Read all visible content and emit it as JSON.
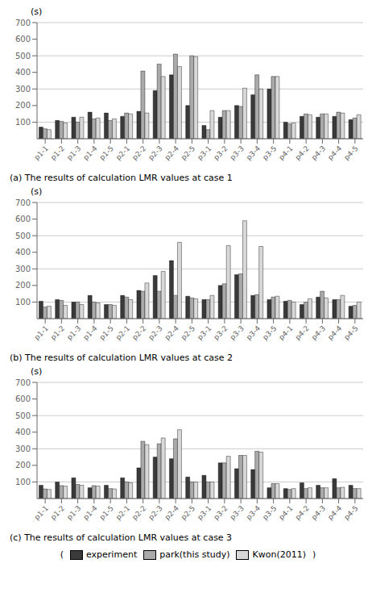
{
  "chart_data": [
    {
      "type": "bar",
      "title": "(a)  The results of calculation LMR values at case 1",
      "y_label": "(s)",
      "categories": [
        "p1-1",
        "p1-2",
        "p1-3",
        "p1-4",
        "p1-5",
        "p2-1",
        "p2-2",
        "p2-3",
        "p2-4",
        "p2-5",
        "p3-1",
        "p3-2",
        "p3-3",
        "p3-4",
        "p3-5",
        "p4-1",
        "p4-2",
        "p4-3",
        "p4-4",
        "p4-5"
      ],
      "series": [
        {
          "name": "experiment",
          "color": "#3a3a3a",
          "values": [
            70,
            110,
            130,
            160,
            155,
            135,
            165,
            290,
            385,
            200,
            80,
            130,
            200,
            265,
            300,
            100,
            135,
            130,
            135,
            115
          ]
        },
        {
          "name": "park(this study)",
          "color": "#aaaaaa",
          "values": [
            60,
            105,
            100,
            120,
            110,
            155,
            408,
            450,
            510,
            500,
            55,
            170,
            195,
            385,
            375,
            90,
            150,
            150,
            160,
            125
          ]
        },
        {
          "name": "Kwon(2011)",
          "color": "#d8d8d8",
          "values": [
            55,
            95,
            130,
            125,
            120,
            150,
            155,
            375,
            435,
            495,
            170,
            170,
            305,
            300,
            375,
            95,
            145,
            150,
            155,
            145
          ]
        }
      ],
      "ylim": [
        0,
        700
      ],
      "yticks": [
        100,
        200,
        300,
        400,
        500,
        600,
        700
      ],
      "grid": true
    },
    {
      "type": "bar",
      "title": "(b)  The results of calculation LMR values at case 2",
      "y_label": "(s)",
      "categories": [
        "p1-1",
        "p1-2",
        "p1-3",
        "p1-4",
        "p1-5",
        "p2-1",
        "p2-2",
        "p2-3",
        "p2-4",
        "p2-5",
        "p3-1",
        "p3-2",
        "p3-3",
        "p3-4",
        "p3-5",
        "p4-1",
        "p4-2",
        "p4-3",
        "p4-4",
        "p4-5"
      ],
      "series": [
        {
          "name": "experiment",
          "color": "#3a3a3a",
          "values": [
            105,
            115,
            100,
            140,
            85,
            140,
            170,
            260,
            350,
            135,
            115,
            200,
            265,
            140,
            115,
            105,
            85,
            130,
            115,
            75
          ]
        },
        {
          "name": "park(this study)",
          "color": "#aaaaaa",
          "values": [
            70,
            110,
            100,
            100,
            85,
            130,
            165,
            165,
            140,
            125,
            115,
            210,
            270,
            145,
            130,
            110,
            100,
            165,
            115,
            80
          ]
        },
        {
          "name": "Kwon(2011)",
          "color": "#d8d8d8",
          "values": [
            75,
            80,
            85,
            95,
            80,
            115,
            215,
            285,
            460,
            120,
            140,
            440,
            590,
            435,
            135,
            100,
            120,
            125,
            140,
            100
          ]
        }
      ],
      "ylim": [
        0,
        700
      ],
      "yticks": [
        100,
        200,
        300,
        400,
        500,
        600,
        700
      ],
      "grid": true
    },
    {
      "type": "bar",
      "title": "(c)  The results of calculation LMR values at case 3",
      "y_label": "(s)",
      "categories": [
        "p1-1",
        "p1-2",
        "p1-3",
        "p1-4",
        "p1-5",
        "p2-1",
        "p2-2",
        "p2-3",
        "p2-4",
        "p2-5",
        "p3-1",
        "p3-2",
        "p3-3",
        "p3-4",
        "p3-5",
        "p4-1",
        "p4-2",
        "p4-3",
        "p4-4",
        "p4-5"
      ],
      "series": [
        {
          "name": "experiment",
          "color": "#3a3a3a",
          "values": [
            80,
            100,
            125,
            65,
            80,
            125,
            185,
            250,
            240,
            130,
            140,
            215,
            180,
            175,
            65,
            60,
            95,
            80,
            120,
            80
          ]
        },
        {
          "name": "park(this study)",
          "color": "#aaaaaa",
          "values": [
            58,
            78,
            85,
            78,
            60,
            100,
            345,
            330,
            360,
            100,
            100,
            215,
            260,
            285,
            90,
            55,
            60,
            65,
            65,
            60
          ]
        },
        {
          "name": "Kwon(2011)",
          "color": "#d8d8d8",
          "values": [
            55,
            75,
            80,
            75,
            58,
            95,
            325,
            365,
            415,
            100,
            100,
            255,
            260,
            280,
            90,
            60,
            65,
            65,
            68,
            60
          ]
        }
      ],
      "ylim": [
        0,
        700
      ],
      "yticks": [
        100,
        200,
        300,
        400,
        500,
        600,
        700
      ],
      "grid": true,
      "legend": "bottom",
      "annotations": [
        "(",
        ")"
      ]
    }
  ]
}
